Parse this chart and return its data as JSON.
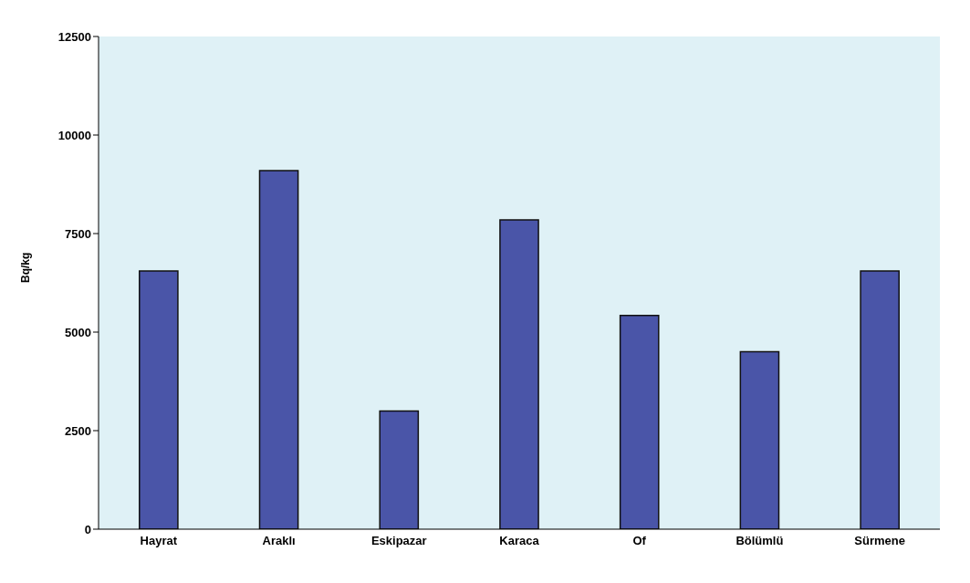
{
  "chart_data": {
    "type": "bar",
    "ylabel": "Bq/kg",
    "categories": [
      "Hayrat",
      "Araklı",
      "Eskipazar",
      "Karaca",
      "Of",
      "Bölümlü",
      "Sürmene"
    ],
    "values": [
      6550,
      9100,
      3000,
      7850,
      5420,
      4500,
      6550
    ],
    "color": "#4a55a8",
    "ylim": [
      0,
      12500
    ],
    "yticks": [
      0,
      2500,
      5000,
      7500,
      10000,
      12500
    ]
  }
}
